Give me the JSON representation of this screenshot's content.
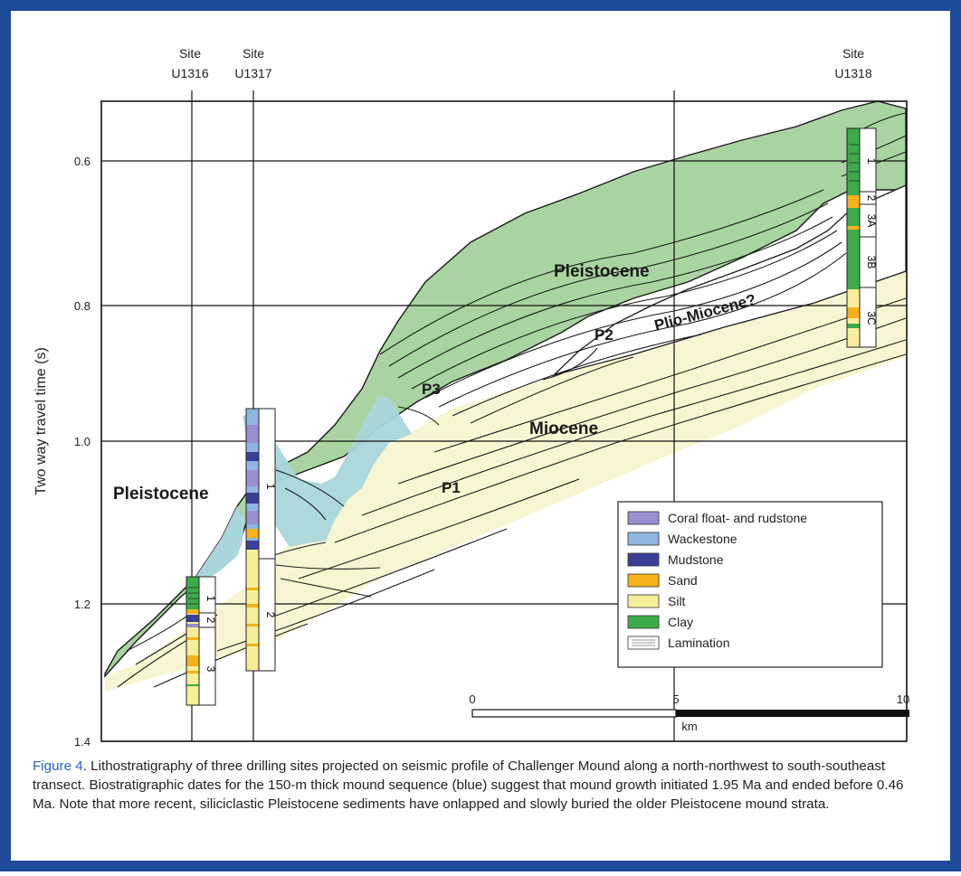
{
  "figure": {
    "y_axis_label": "Two way travel time (s)",
    "y_ticks": [
      "0.6",
      "0.8",
      "1.0",
      "1.2",
      "1.4"
    ],
    "sites": [
      {
        "line1": "Site",
        "line2": "U1316"
      },
      {
        "line1": "Site",
        "line2": "U1317"
      },
      {
        "line1": "Site",
        "line2": "U1318"
      }
    ],
    "units": {
      "u1316": [
        "1",
        "2",
        "3"
      ],
      "u1317": [
        "1",
        "2"
      ],
      "u1318": [
        "1",
        "2",
        "3A",
        "3B",
        "3C"
      ]
    },
    "labels": {
      "pleistocene_upper": "Pleistocene",
      "pleistocene_left": "Pleistocene",
      "plio_miocene": "Plio-Miocene?",
      "p2": "P2",
      "p3": "P3",
      "miocene": "Miocene",
      "p1": "P1"
    },
    "scale_bar": {
      "ticks": [
        "0",
        "5",
        "10"
      ],
      "unit": "km"
    },
    "legend": [
      {
        "label": "Coral float- and rudstone",
        "color": "#9a8fd0"
      },
      {
        "label": "Wackestone",
        "color": "#8fb6e0"
      },
      {
        "label": "Mudstone",
        "color": "#3a3f98"
      },
      {
        "label": "Sand",
        "color": "#f5b21a"
      },
      {
        "label": "Silt",
        "color": "#f7ee9a"
      },
      {
        "label": "Clay",
        "color": "#3dab49"
      },
      {
        "label": "Lamination",
        "color": "#ffffff"
      }
    ],
    "colors": {
      "pleistocene_drape": "#a9d4a1",
      "mound": "#a9d6dc",
      "miocene": "#f8f6d2",
      "border": "#1e4a9a",
      "caption_label": "#2a63b3"
    }
  },
  "caption": {
    "label": "Figure 4",
    "text": ". Lithostratigraphy of three drilling sites projected on seismic profile of Challenger Mound along a north-northwest to south-southeast transect. Biostratigraphic dates for the 150-m thick mound sequence (blue) suggest that mound growth initiated 1.95 Ma and ended before 0.46 Ma. Note that more recent, siliciclastic Pleistocene sediments have onlapped and slowly buried the older Pleistocene mound strata."
  }
}
